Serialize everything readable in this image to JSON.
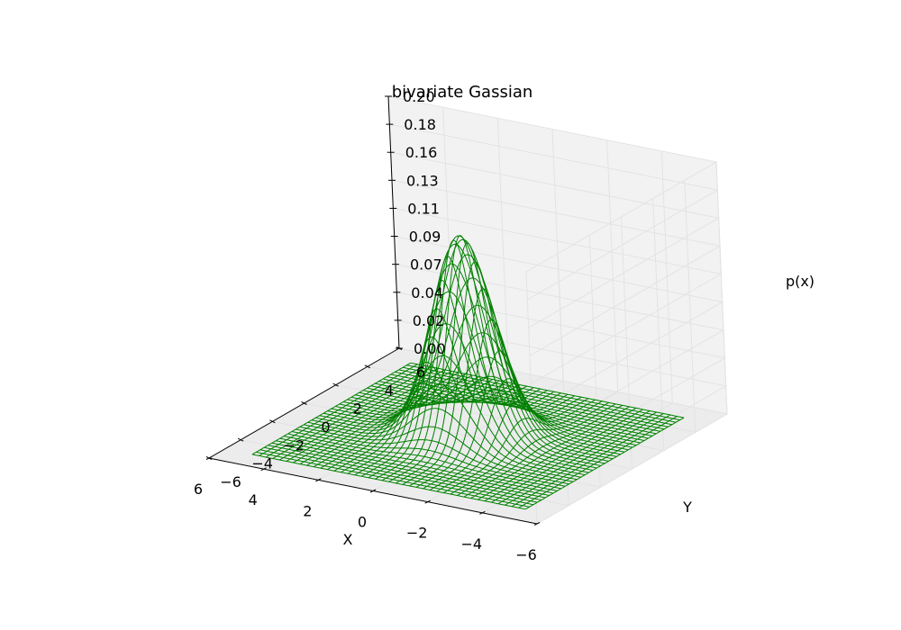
{
  "chart_data": {
    "type": "surface-wireframe",
    "title": "bivariate Gassian",
    "xlabel": "X",
    "ylabel": "Y",
    "zlabel": "p(x)",
    "xlim": [
      -6,
      6
    ],
    "ylim": [
      -6,
      6
    ],
    "zlim": [
      0.0,
      0.2
    ],
    "x_ticks": [
      "−6",
      "−4",
      "−2",
      "0",
      "2",
      "4",
      "6"
    ],
    "y_ticks": [
      "−6",
      "−4",
      "−2",
      "0",
      "2",
      "4",
      "6"
    ],
    "z_ticks": [
      "0.00",
      "0.02",
      "0.04",
      "0.07",
      "0.09",
      "0.11",
      "0.13",
      "0.16",
      "0.18",
      "0.20"
    ],
    "surface": {
      "function": "bivariate gaussian",
      "mean": [
        0,
        0
      ],
      "std": [
        1,
        1
      ],
      "peak": 0.159,
      "grid_range": [
        -5,
        5
      ],
      "grid_lines": 41
    },
    "grid": true,
    "colors": {
      "wire": "#008000",
      "pane_back": "#f2f2f2",
      "pane_side": "#f7f7f7",
      "pane_floor": "#ececec",
      "gridline": "#e3e3e3"
    }
  }
}
